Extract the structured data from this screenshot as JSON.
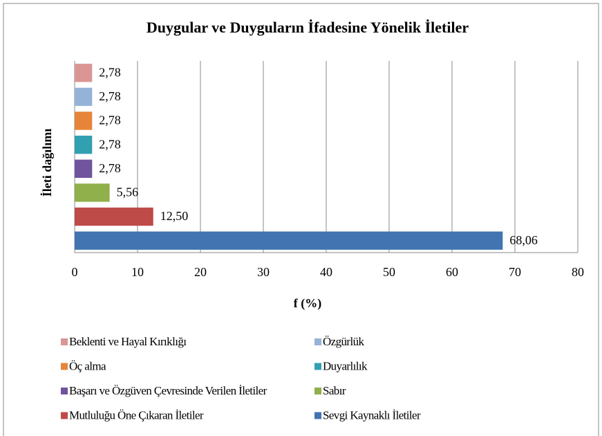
{
  "chart_data": {
    "type": "bar",
    "orientation": "horizontal",
    "title": "Duygular ve Duyguların İfadesine Yönelik İletiler",
    "x_label": "f (%)",
    "y_label": "İleti dağılımı",
    "categories": [
      null
    ],
    "series": [
      {
        "name": "Beklenti ve Hayal Kırıklığı",
        "color": "#d99694",
        "values": [
          2.78
        ],
        "value_labels": [
          "2,78"
        ]
      },
      {
        "name": "Özgürlük",
        "color": "#95b3d7",
        "values": [
          2.78
        ],
        "value_labels": [
          "2,78"
        ]
      },
      {
        "name": "Öç alma",
        "color": "#e6853a",
        "values": [
          2.78
        ],
        "value_labels": [
          "2,78"
        ]
      },
      {
        "name": "Duyarlılık",
        "color": "#31a0b0",
        "values": [
          2.78
        ],
        "value_labels": [
          "2,78"
        ]
      },
      {
        "name": "Başarı ve Özgüven Çevresinde Verilen İletiler",
        "color": "#70549e",
        "values": [
          2.78
        ],
        "value_labels": [
          "2,78"
        ]
      },
      {
        "name": "Sabır",
        "color": "#8fb04a",
        "values": [
          5.56
        ],
        "value_labels": [
          "5,56"
        ]
      },
      {
        "name": "Mutluluğu Öne Çıkaran İletiler",
        "color": "#be4b48",
        "values": [
          12.5
        ],
        "value_labels": [
          "12,50"
        ]
      },
      {
        "name": "Sevgi Kaynaklı İletiler",
        "color": "#4174b0",
        "values": [
          68.06
        ],
        "value_labels": [
          "68,06"
        ]
      }
    ],
    "xlim": [
      0,
      80
    ],
    "xticks": [
      0,
      10,
      20,
      30,
      40,
      50,
      60,
      70,
      80
    ],
    "grid": true,
    "legend": "bottom"
  }
}
